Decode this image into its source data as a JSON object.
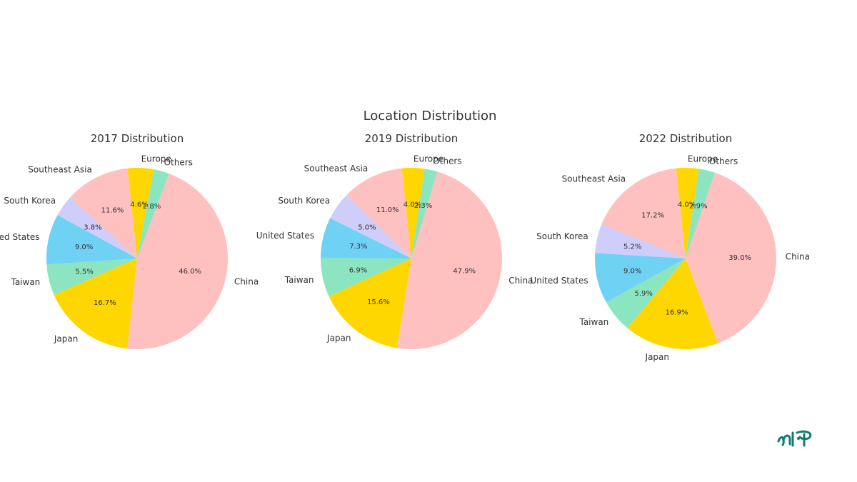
{
  "chart_data": {
    "title": "Location Distribution",
    "type": "pie",
    "colors": {
      "Southeast Asia": "#ffc0c0",
      "South Korea": "#cfcdfa",
      "United States": "#6fd2f5",
      "Taiwan": "#8ae5c0",
      "Japan": "#ffd700",
      "China": "#ffc0c0",
      "Others": "#8ae5c0",
      "Europe": "#ffd700"
    },
    "charts": [
      {
        "title": "2017 Distribution",
        "labels": [
          "Southeast Asia",
          "South Korea",
          "United States",
          "Taiwan",
          "Japan",
          "China",
          "Others",
          "Europe"
        ],
        "values": [
          11.6,
          3.8,
          9.0,
          5.5,
          16.7,
          46.0,
          2.8,
          4.6
        ],
        "pct_labels": [
          "11.6%",
          "3.8%",
          "9.0%",
          "5.5%",
          "16.7%",
          "46.0%",
          "2.8%",
          "4.6%"
        ]
      },
      {
        "title": "2019 Distribution",
        "labels": [
          "Southeast Asia",
          "South Korea",
          "United States",
          "Taiwan",
          "Japan",
          "China",
          "Others",
          "Europe"
        ],
        "values": [
          11.0,
          5.0,
          7.3,
          6.9,
          15.6,
          47.9,
          2.3,
          4.0
        ],
        "pct_labels": [
          "11.0%",
          "5.0%",
          "7.3%",
          "6.9%",
          "15.6%",
          "47.9%",
          "2.3%",
          "4.0%"
        ]
      },
      {
        "title": "2022 Distribution",
        "labels": [
          "Southeast Asia",
          "South Korea",
          "United States",
          "Taiwan",
          "Japan",
          "China",
          "Others",
          "Europe"
        ],
        "values": [
          17.2,
          5.2,
          9.0,
          5.9,
          16.9,
          39.0,
          2.9,
          4.0
        ],
        "pct_labels": [
          "17.2%",
          "5.2%",
          "9.0%",
          "5.9%",
          "16.9%",
          "39.0%",
          "2.9%",
          "4.0%"
        ]
      }
    ]
  },
  "brand": {
    "accent": "#127a6e",
    "logo_text": "mp"
  }
}
